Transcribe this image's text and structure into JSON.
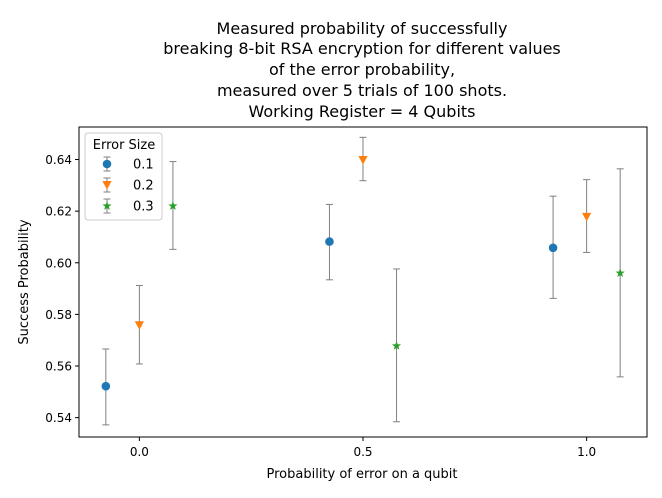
{
  "chart_data": {
    "type": "scatter",
    "title_lines": [
      "Measured probability of successfully",
      "breaking 8-bit RSA encryption for different values",
      "of the error probability,",
      "measured over 5 trials of 100 shots.",
      "Working Register = 4 Qubits"
    ],
    "xlabel": "Probability of error on a qubit",
    "ylabel": "Success Probability",
    "x_ticks": [
      0.0,
      0.5,
      1.0
    ],
    "x_tick_labels": [
      "0.0",
      "0.5",
      "1.0"
    ],
    "y_ticks": [
      0.54,
      0.56,
      0.58,
      0.6,
      0.62,
      0.64
    ],
    "y_tick_labels": [
      "0.54",
      "0.56",
      "0.58",
      "0.60",
      "0.62",
      "0.64"
    ],
    "xlim": [
      -0.135,
      1.135
    ],
    "ylim": [
      0.5325,
      0.6526
    ],
    "grid": false,
    "legend_title": "Error Size",
    "legend_position": "upper-left",
    "error_bar_color": "#808080",
    "series": [
      {
        "name": "0.1",
        "marker": "circle",
        "color": "#1f77b4",
        "x_offset": -0.075,
        "points": [
          {
            "x": 0.0,
            "y": 0.5522,
            "lo": 0.5372,
            "hi": 0.5666
          },
          {
            "x": 0.5,
            "y": 0.6082,
            "lo": 0.5934,
            "hi": 0.6226
          },
          {
            "x": 1.0,
            "y": 0.6058,
            "lo": 0.5862,
            "hi": 0.6258
          }
        ]
      },
      {
        "name": "0.2",
        "marker": "triangle-down",
        "color": "#ff7f0e",
        "x_offset": 0.0,
        "points": [
          {
            "x": 0.0,
            "y": 0.5758,
            "lo": 0.5608,
            "hi": 0.5912
          },
          {
            "x": 0.5,
            "y": 0.6398,
            "lo": 0.6318,
            "hi": 0.6486
          },
          {
            "x": 1.0,
            "y": 0.6178,
            "lo": 0.604,
            "hi": 0.6322
          }
        ]
      },
      {
        "name": "0.3",
        "marker": "star",
        "color": "#2ca02c",
        "x_offset": 0.075,
        "points": [
          {
            "x": 0.0,
            "y": 0.622,
            "lo": 0.6052,
            "hi": 0.6392
          },
          {
            "x": 0.5,
            "y": 0.5678,
            "lo": 0.5384,
            "hi": 0.5976
          },
          {
            "x": 1.0,
            "y": 0.596,
            "lo": 0.5558,
            "hi": 0.6364
          }
        ]
      }
    ]
  }
}
